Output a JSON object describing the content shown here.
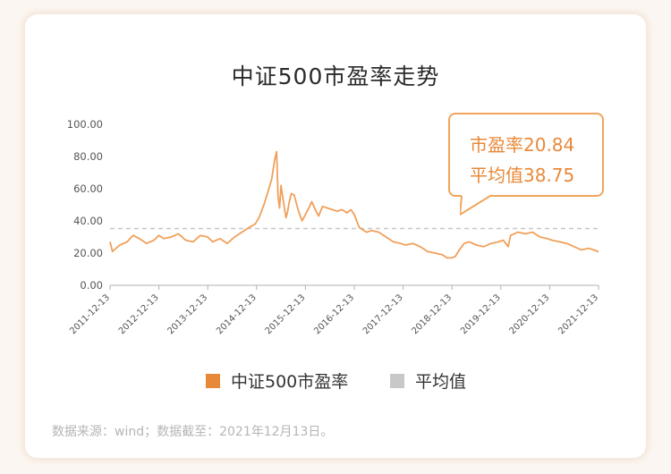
{
  "title": "中证500市盈率走势",
  "callout": {
    "pe_line": "市盈率20.84",
    "avg_line": "平均值38.75"
  },
  "legend": {
    "series_label": "中证500市盈率",
    "avg_label": "平均值"
  },
  "source_note": "数据来源：wind；数据截至：2021年12月13日。",
  "colors": {
    "series": "#f0a05a",
    "average": "#c8c8c8",
    "accent_text": "#e8893a",
    "axis": "#b0b0b0"
  },
  "chart_data": {
    "type": "line",
    "title": "中证500市盈率走势",
    "ylim": [
      0,
      100
    ],
    "yticks": [
      "0.00",
      "20.00",
      "40.00",
      "60.00",
      "80.00",
      "100.00"
    ],
    "xticks": [
      "2011-12-13",
      "2012-12-13",
      "2013-12-13",
      "2014-12-13",
      "2015-12-13",
      "2016-12-13",
      "2017-12-13",
      "2018-12-13",
      "2019-12-13",
      "2020-12-13",
      "2021-12-13"
    ],
    "grid": false,
    "legend_position": "bottom",
    "average": 38.75,
    "latest": 20.84,
    "series": [
      {
        "name": "中证500市盈率",
        "x": [
          2011.95,
          2012.0,
          2012.15,
          2012.3,
          2012.42,
          2012.55,
          2012.7,
          2012.85,
          2012.95,
          2013.05,
          2013.2,
          2013.35,
          2013.5,
          2013.65,
          2013.8,
          2013.95,
          2014.05,
          2014.2,
          2014.35,
          2014.5,
          2014.6,
          2014.7,
          2014.8,
          2014.92,
          2015.0,
          2015.1,
          2015.18,
          2015.26,
          2015.32,
          2015.36,
          2015.39,
          2015.42,
          2015.45,
          2015.5,
          2015.55,
          2015.58,
          2015.62,
          2015.66,
          2015.72,
          2015.8,
          2015.88,
          2015.95,
          2016.02,
          2016.08,
          2016.15,
          2016.22,
          2016.3,
          2016.4,
          2016.5,
          2016.6,
          2016.7,
          2016.8,
          2016.88,
          2016.95,
          2017.0,
          2017.05,
          2017.1,
          2017.2,
          2017.3,
          2017.45,
          2017.6,
          2017.75,
          2017.9,
          2018.0,
          2018.15,
          2018.3,
          2018.45,
          2018.6,
          2018.75,
          2018.85,
          2018.95,
          2019.02,
          2019.1,
          2019.2,
          2019.3,
          2019.45,
          2019.6,
          2019.75,
          2019.9,
          2020.0,
          2020.1,
          2020.15,
          2020.3,
          2020.45,
          2020.6,
          2020.75,
          2020.9,
          2021.0,
          2021.15,
          2021.3,
          2021.45,
          2021.6,
          2021.75,
          2021.85,
          2021.95
        ],
        "values": [
          27,
          21,
          25,
          27,
          31,
          29,
          26,
          28,
          31,
          29,
          30,
          32,
          28,
          27,
          31,
          30,
          27,
          29,
          26,
          30,
          32,
          34,
          36,
          38,
          42,
          50,
          58,
          66,
          78,
          83,
          55,
          48,
          62,
          52,
          42,
          45,
          52,
          57,
          56,
          47,
          40,
          44,
          48,
          52,
          47,
          43,
          49,
          48,
          47,
          46,
          47,
          45,
          47,
          44,
          40,
          36,
          35,
          33,
          34,
          33,
          30,
          27,
          26,
          25,
          26,
          24,
          21,
          20,
          19,
          17,
          17,
          18,
          22,
          26,
          27,
          25,
          24,
          26,
          27,
          28,
          24,
          31,
          33,
          32,
          33,
          30,
          29,
          28,
          27,
          26,
          24,
          22,
          23,
          22,
          20.84
        ]
      }
    ]
  }
}
